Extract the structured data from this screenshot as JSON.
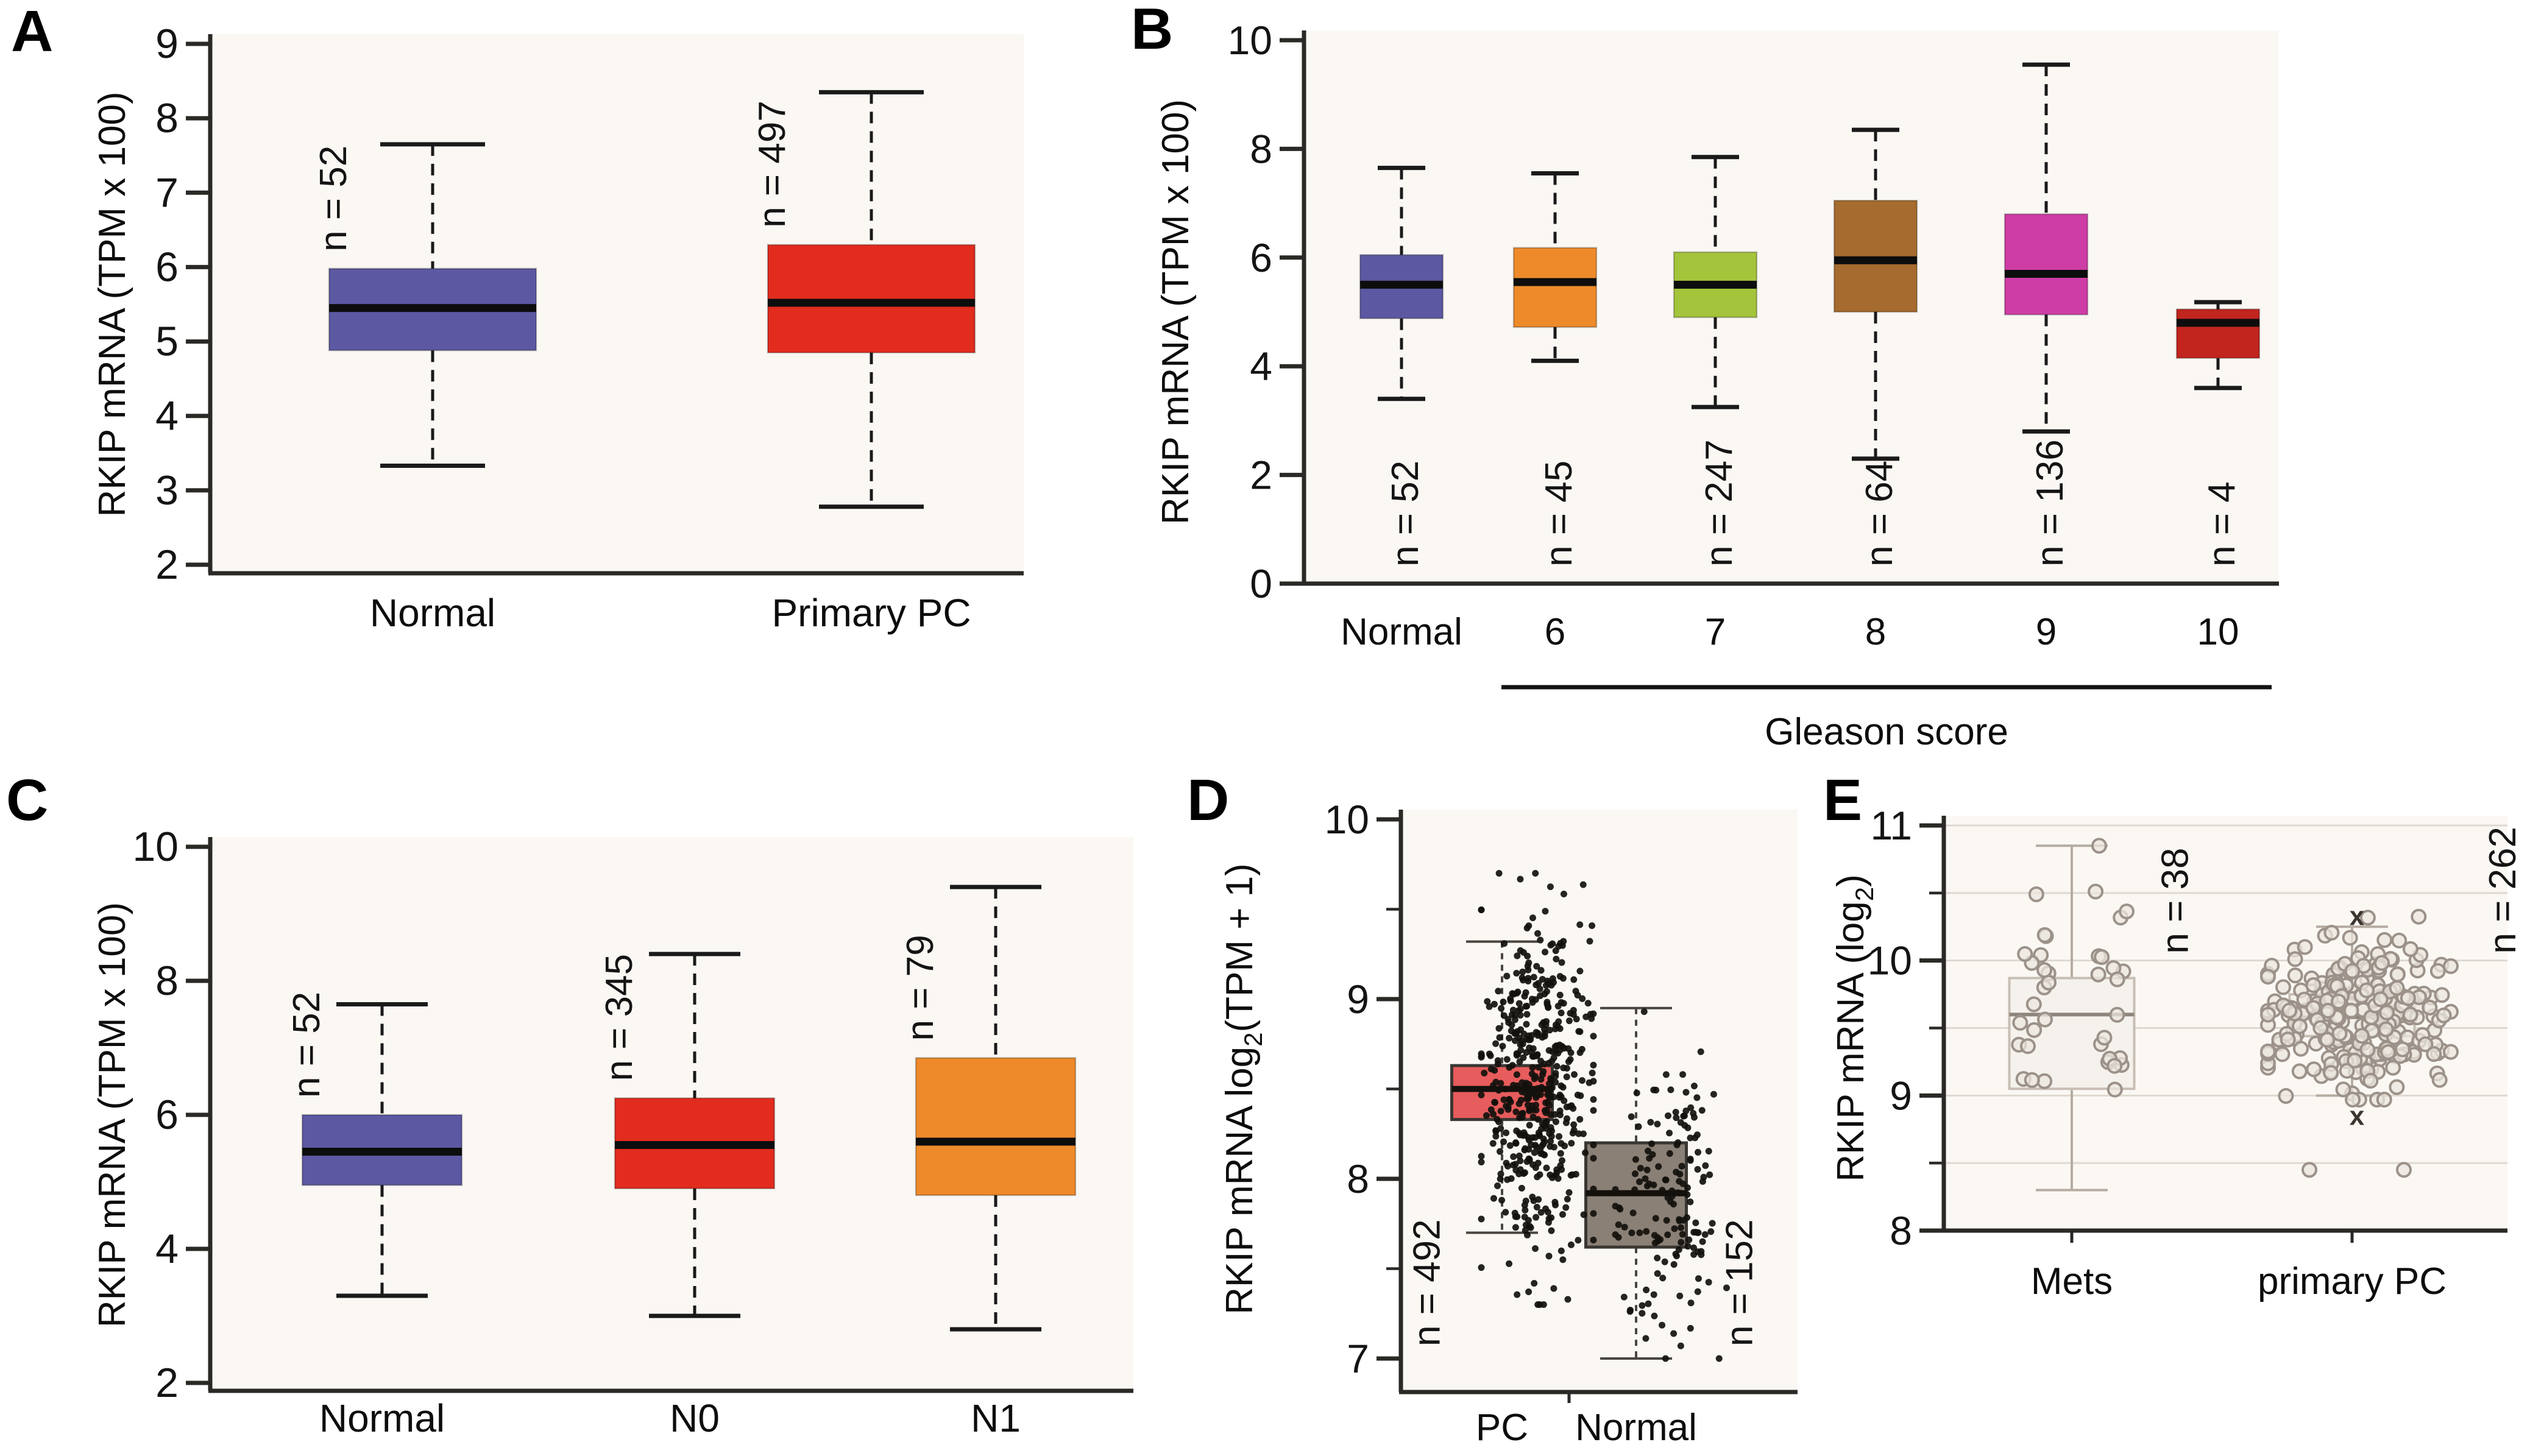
{
  "chart_data": {
    "type": "boxplot",
    "description": "Five-panel box plot figure of RKIP mRNA expression in prostate cancer datasets",
    "colors": {
      "blue": "#5c58a2",
      "red": "#e12c1e",
      "orange": "#ee8a2a",
      "green": "#a4c53b",
      "brown": "#a66b2e",
      "magenta": "#ce3da5",
      "dark_red": "#c2241e",
      "salmon": "#e75c5c",
      "taupe": "#8a8076",
      "light_box": "#f5f2ed",
      "plot_background": "#fbf8f4",
      "axis": "#2b2926",
      "gridline": "#ded8d0"
    },
    "panels": [
      {
        "panel_label": "A",
        "ylabel": {
          "text": "RKIP mRNA (TPM x 100)",
          "sub": "",
          "post": ""
        },
        "ylim": [
          2,
          9
        ],
        "yticks": [
          2,
          3,
          4,
          5,
          6,
          7,
          8,
          9
        ],
        "minor_yticks": [],
        "grid_values": [],
        "whisker_style": "dashed",
        "n_label_mode": "above",
        "series": [
          {
            "category": "Normal",
            "n_label": "n = 52",
            "n": 52,
            "color": "#5c58a2",
            "low": 3.33,
            "q1": 4.88,
            "median": 5.45,
            "q3": 5.98,
            "high": 7.65
          },
          {
            "category": "Primary PC",
            "n_label": "n = 497",
            "n": 497,
            "color": "#e12c1e",
            "low": 2.78,
            "q1": 4.85,
            "median": 5.52,
            "q3": 6.3,
            "high": 8.35
          }
        ]
      },
      {
        "panel_label": "B",
        "ylabel": {
          "text": "RKIP mRNA (TPM x 100)",
          "sub": "",
          "post": ""
        },
        "ylim": [
          0,
          10
        ],
        "yticks": [
          0,
          2,
          4,
          6,
          8,
          10
        ],
        "minor_yticks": [],
        "grid_values": [],
        "whisker_style": "dashed",
        "n_label_mode": "bottom",
        "group_label": "Gleason score",
        "group_span": [
          1,
          5
        ],
        "series": [
          {
            "category": "Normal",
            "n_label": "n = 52",
            "n": 52,
            "color": "#5c58a2",
            "low": 3.4,
            "q1": 4.88,
            "median": 5.5,
            "q3": 6.05,
            "high": 7.65
          },
          {
            "category": "6",
            "n_label": "n = 45",
            "n": 45,
            "color": "#ee8a2a",
            "low": 4.1,
            "q1": 4.72,
            "median": 5.55,
            "q3": 6.18,
            "high": 7.55
          },
          {
            "category": "7",
            "n_label": "n = 247",
            "n": 247,
            "color": "#a4c53b",
            "low": 3.25,
            "q1": 4.9,
            "median": 5.5,
            "q3": 6.1,
            "high": 7.85
          },
          {
            "category": "8",
            "n_label": "n = 64",
            "n": 64,
            "color": "#a66b2e",
            "low": 2.3,
            "q1": 5.0,
            "median": 5.95,
            "q3": 7.05,
            "high": 8.35
          },
          {
            "category": "9",
            "n_label": "n = 136",
            "n": 136,
            "color": "#ce3da5",
            "low": 2.8,
            "q1": 4.95,
            "median": 5.7,
            "q3": 6.8,
            "high": 9.55
          },
          {
            "category": "10",
            "n_label": "n = 4",
            "n": 4,
            "color": "#c2241e",
            "low": 3.6,
            "q1": 4.15,
            "median": 4.8,
            "q3": 5.05,
            "high": 5.18
          }
        ]
      },
      {
        "panel_label": "C",
        "ylabel": {
          "text": "RKIP mRNA (TPM x 100)",
          "sub": "",
          "post": ""
        },
        "ylim": [
          2,
          10
        ],
        "yticks": [
          2,
          4,
          6,
          8,
          10
        ],
        "minor_yticks": [],
        "grid_values": [],
        "whisker_style": "dashed",
        "n_label_mode": "above",
        "series": [
          {
            "category": "Normal",
            "n_label": "n = 52",
            "n": 52,
            "color": "#5c58a2",
            "low": 3.3,
            "q1": 4.95,
            "median": 5.45,
            "q3": 6.0,
            "high": 7.65
          },
          {
            "category": "N0",
            "n_label": "n = 345",
            "n": 345,
            "color": "#e12c1e",
            "low": 3.0,
            "q1": 4.9,
            "median": 5.55,
            "q3": 6.25,
            "high": 8.4
          },
          {
            "category": "N1",
            "n_label": "n = 79",
            "n": 79,
            "color": "#ee8a2a",
            "low": 2.8,
            "q1": 4.8,
            "median": 5.6,
            "q3": 6.85,
            "high": 9.4
          }
        ]
      },
      {
        "panel_label": "D",
        "ylabel": {
          "text": "RKIP mRNA log",
          "sub": "2",
          "post": "(TPM + 1)"
        },
        "ylim": [
          7,
          10
        ],
        "yticks": [
          7,
          8,
          9,
          10
        ],
        "minor_yticks": [
          7.5,
          8.5,
          9.5
        ],
        "grid_values": [],
        "whisker_style": "dashed-thin",
        "n_label_mode": "sideD",
        "series": [
          {
            "category": "PC",
            "n_label": "n = 492",
            "n": 492,
            "color": "#e75c5c",
            "low": 7.7,
            "q1": 8.33,
            "median": 8.5,
            "q3": 8.63,
            "high": 9.32,
            "scatter": {
              "marker": "dot",
              "n": 492,
              "range": [
                7.3,
                9.7
              ]
            }
          },
          {
            "category": "Normal",
            "n_label": "n = 152",
            "n": 152,
            "color": "#8a8076",
            "low": 7.0,
            "q1": 7.62,
            "median": 7.92,
            "q3": 8.2,
            "high": 8.95,
            "scatter": {
              "marker": "dot",
              "n": 152,
              "range": [
                7.0,
                8.93
              ]
            }
          }
        ]
      },
      {
        "panel_label": "E",
        "ylabel": {
          "text": "RKIP mRNA (log",
          "sub": "2",
          "post": ")"
        },
        "ylim": [
          8,
          11
        ],
        "yticks": [
          8,
          9,
          10,
          11
        ],
        "minor_yticks": [
          8.5,
          9.5,
          10.5
        ],
        "grid_values": [
          8.5,
          9,
          9.5,
          10,
          10.5,
          11
        ],
        "whisker_style": "solid-light",
        "n_label_mode": "sideE",
        "series": [
          {
            "category": "Mets",
            "n_label": "n = 38",
            "n": 38,
            "color": "#f5f2ed",
            "low": 8.3,
            "q1": 9.05,
            "median": 9.6,
            "q3": 9.87,
            "high": 10.85,
            "scatter": {
              "marker": "circle",
              "n": 38,
              "range": [
                8.3,
                10.85
              ]
            }
          },
          {
            "category": "primary PC",
            "n_label": "n = 262",
            "n": 262,
            "color": "#f5f2ed",
            "low": 9.0,
            "q1": 9.44,
            "median": 9.58,
            "q3": 9.75,
            "high": 10.25,
            "scatter": {
              "marker": "circle",
              "n": 262,
              "range": [
                8.97,
                10.33
              ],
              "outlier_circles": [
                8.45,
                8.45
              ],
              "x_markers": [
                10.33,
                8.85
              ]
            }
          }
        ]
      }
    ]
  }
}
